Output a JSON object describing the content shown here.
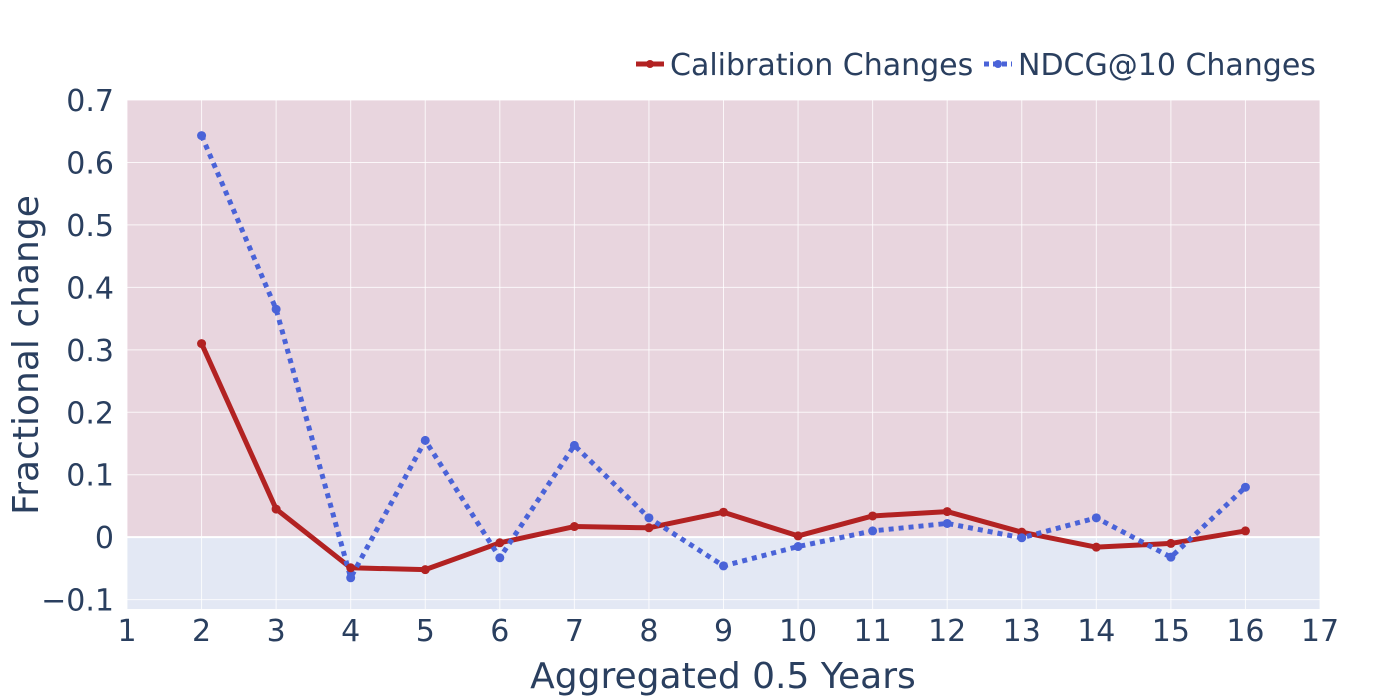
{
  "chart_data": {
    "type": "line",
    "x": [
      2,
      3,
      4,
      5,
      6,
      7,
      8,
      9,
      10,
      11,
      12,
      13,
      14,
      15,
      16
    ],
    "series": [
      {
        "name": "Calibration Changes",
        "color": "#b22222",
        "dash": "solid",
        "values": [
          0.31,
          0.045,
          -0.049,
          -0.052,
          -0.009,
          0.017,
          0.015,
          0.04,
          0.002,
          0.034,
          0.041,
          0.008,
          -0.016,
          -0.01,
          0.01
        ]
      },
      {
        "name": "NDCG@10 Changes",
        "color": "#4a63d8",
        "dash": "dot",
        "values": [
          0.643,
          0.365,
          -0.065,
          0.155,
          -0.033,
          0.147,
          0.031,
          -0.046,
          -0.015,
          0.01,
          0.022,
          -0.001,
          0.031,
          -0.032,
          0.08
        ]
      }
    ],
    "xlabel": "Aggregated 0.5 Years",
    "ylabel": "Fractional change",
    "xlim": [
      1,
      17
    ],
    "ylim": [
      -0.115,
      0.7
    ],
    "xticks": [
      1,
      2,
      3,
      4,
      5,
      6,
      7,
      8,
      9,
      10,
      11,
      12,
      13,
      14,
      15,
      16,
      17
    ],
    "yticks": [
      -0.1,
      0,
      0.1,
      0.2,
      0.3,
      0.4,
      0.5,
      0.6,
      0.7
    ],
    "ytick_labels": [
      "−0.1",
      "0",
      "0.1",
      "0.2",
      "0.3",
      "0.4",
      "0.5",
      "0.6",
      "0.7"
    ],
    "grid": true,
    "legend_position": "top-right",
    "background_bands": [
      {
        "from": 0,
        "to": 0.7,
        "color": "#e8d5de"
      },
      {
        "from": -0.115,
        "to": 0,
        "color": "#e3e8f4"
      }
    ]
  }
}
